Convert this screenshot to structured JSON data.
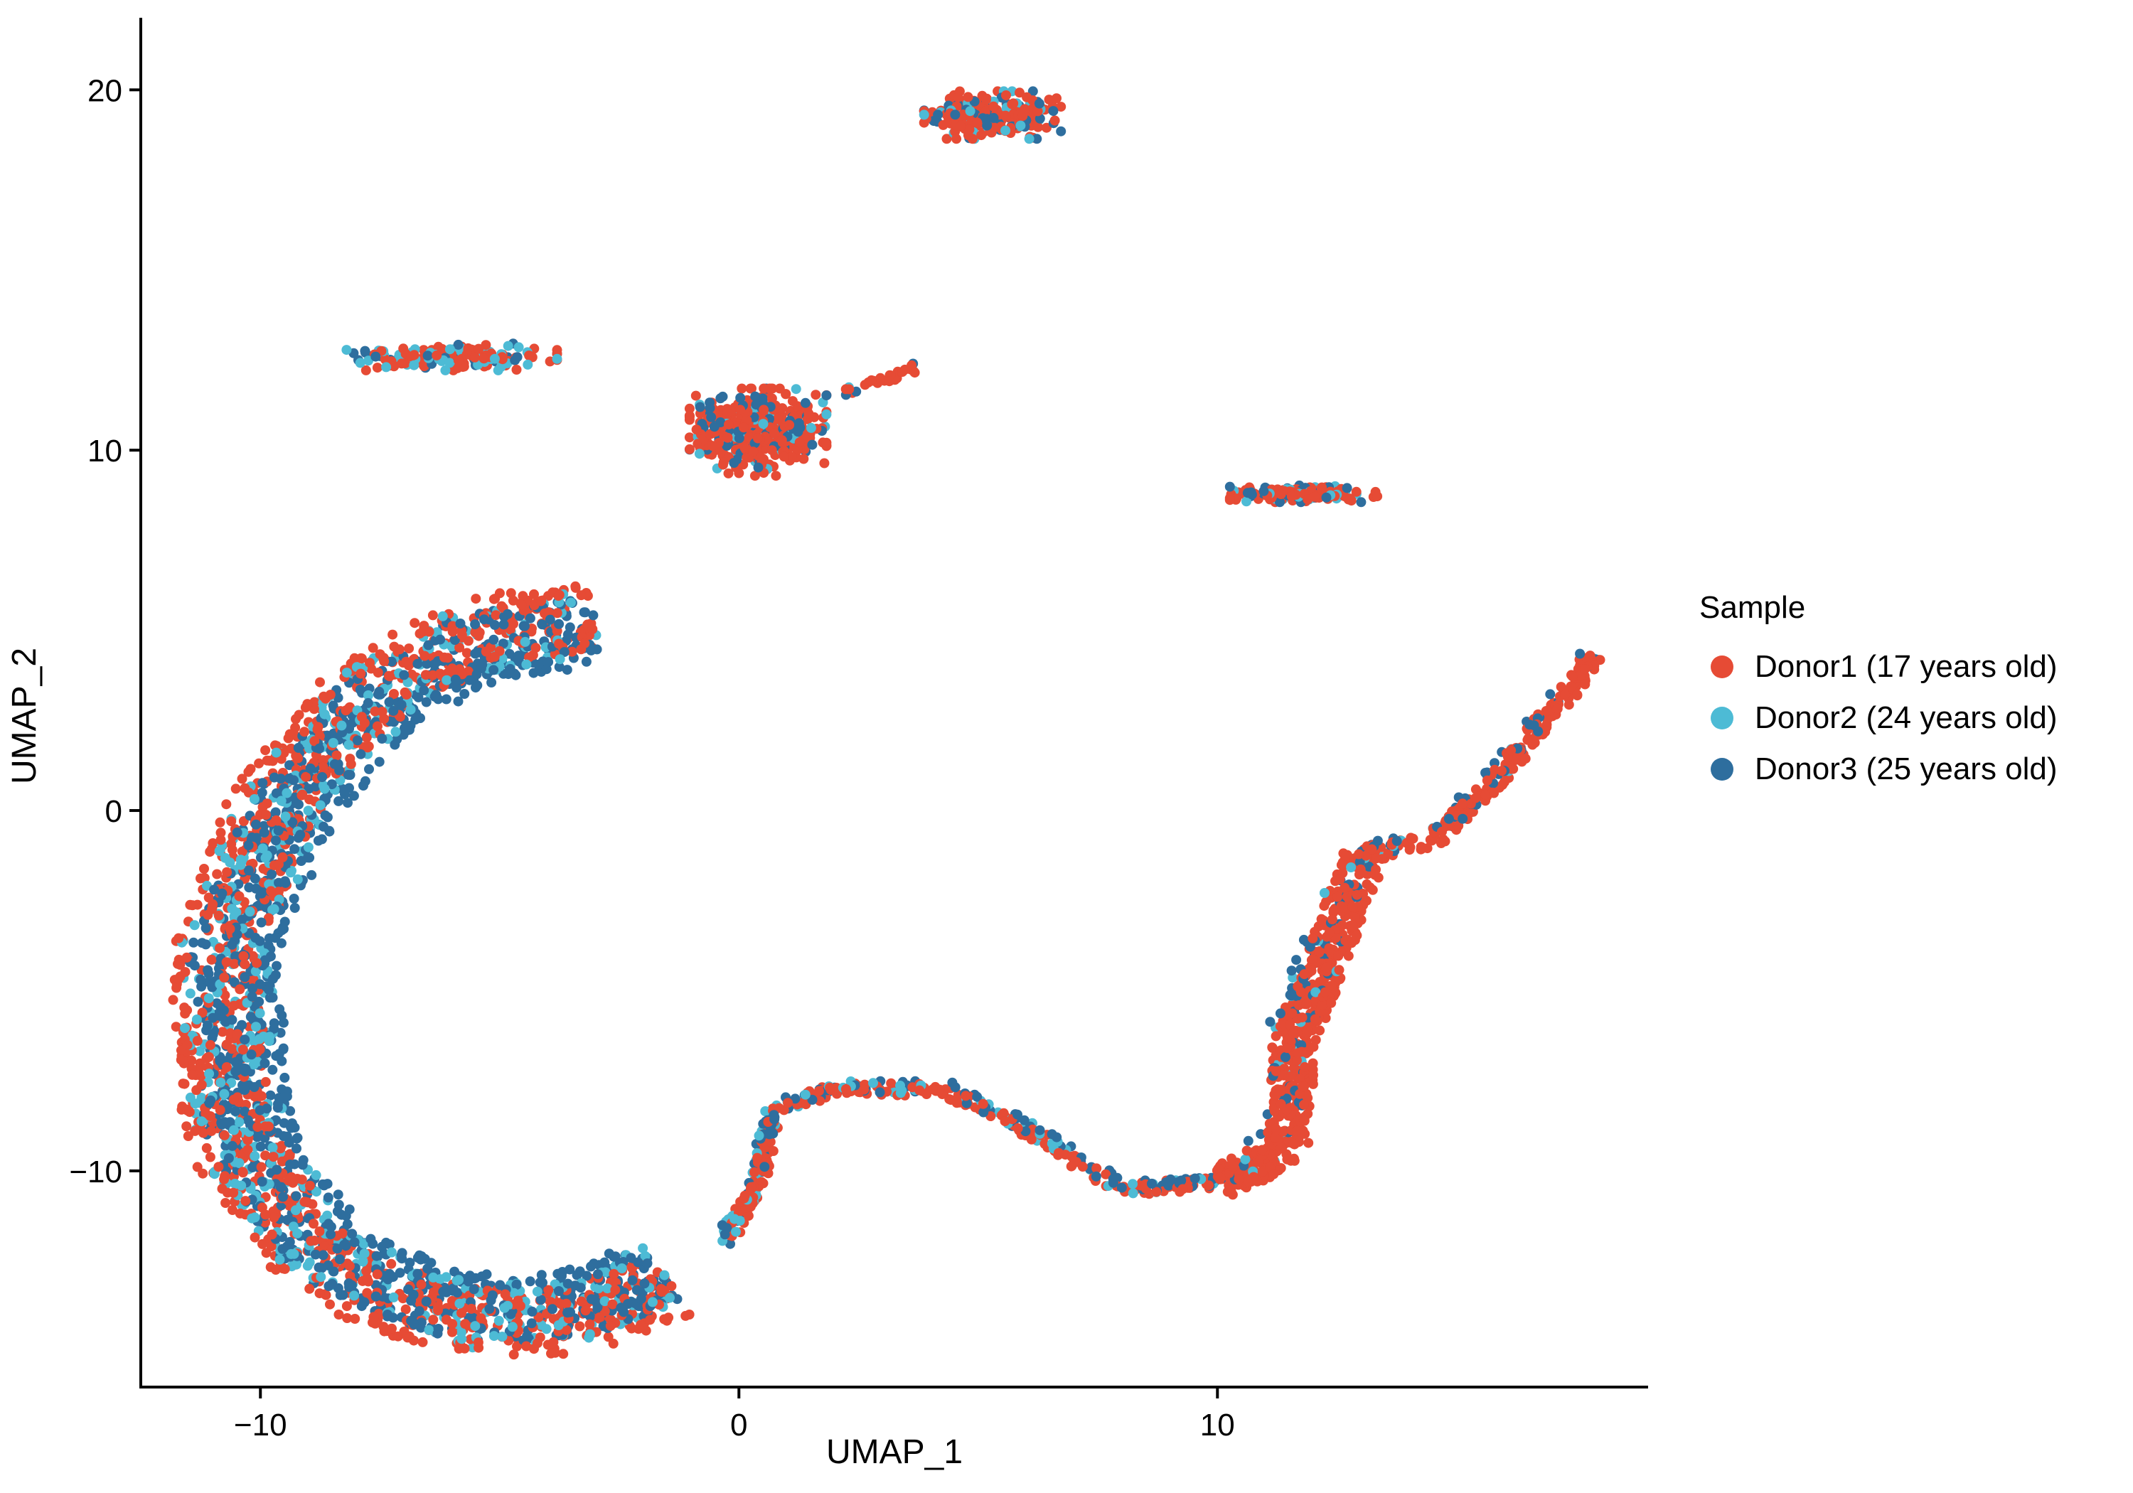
{
  "chart_data": {
    "type": "scatter",
    "title": "",
    "xlabel": "UMAP_1",
    "ylabel": "UMAP_2",
    "xlim": [
      -12.5,
      19
    ],
    "ylim": [
      -16,
      22
    ],
    "x_ticks": [
      -10,
      0,
      10
    ],
    "x_tick_labels": [
      "−10",
      "0",
      "10"
    ],
    "y_ticks": [
      -10,
      0,
      10,
      20
    ],
    "y_tick_labels": [
      "−10",
      "0",
      "10",
      "20"
    ],
    "grid": false,
    "legend": {
      "title": "Sample",
      "placement": "right",
      "entries": [
        {
          "label": "Donor1 (17 years old)",
          "color": "#E64B35"
        },
        {
          "label": "Donor2 (24 years old)",
          "color": "#4DBBD5"
        },
        {
          "label": "Donor3 (25 years old)",
          "color": "#2E6E9E"
        }
      ]
    },
    "series": [
      {
        "name": "Donor1 (17 years old)",
        "color": "#E64B35"
      },
      {
        "name": "Donor2 (24 years old)",
        "color": "#4DBBD5"
      },
      {
        "name": "Donor3 (25 years old)",
        "color": "#2E6E9E"
      }
    ],
    "clusters": [
      {
        "shape": "blob",
        "center": [
          5.3,
          19.3
        ],
        "spread": [
          1.3,
          0.6
        ],
        "mix": [
          0.62,
          0.16,
          0.22
        ],
        "n": 260
      },
      {
        "shape": "blob",
        "center": [
          -6.0,
          12.6
        ],
        "spread": [
          2.0,
          0.35
        ],
        "mix": [
          0.55,
          0.3,
          0.15
        ],
        "n": 170
      },
      {
        "shape": "blob",
        "center": [
          0.4,
          10.5
        ],
        "spread": [
          1.3,
          1.1
        ],
        "mix": [
          0.72,
          0.1,
          0.18
        ],
        "n": 440
      },
      {
        "shape": "blob",
        "center": [
          11.8,
          8.8
        ],
        "spread": [
          1.4,
          0.22
        ],
        "mix": [
          0.62,
          0.18,
          0.2
        ],
        "n": 190
      },
      {
        "shape": "path",
        "points": [
          [
            2.2,
            11.6
          ],
          [
            3.7,
            12.3
          ]
        ],
        "width": 0.12,
        "mix": [
          0.9,
          0.05,
          0.05
        ],
        "n": 28
      },
      {
        "shape": "path",
        "points": [
          [
            -3.0,
            5.2
          ],
          [
            -5.5,
            4.8
          ],
          [
            -7.8,
            3.0
          ],
          [
            -9.6,
            0.0
          ],
          [
            -10.8,
            -4.0
          ],
          [
            -10.5,
            -9.0
          ],
          [
            -8.7,
            -12.5
          ],
          [
            -6.0,
            -14.0
          ],
          [
            -3.5,
            -14.0
          ],
          [
            -1.5,
            -13.0
          ]
        ],
        "width": 0.95,
        "mix": [
          0.4,
          0.2,
          0.4
        ],
        "n": 2600
      },
      {
        "shape": "path",
        "points": [
          [
            -0.3,
            -12.0
          ],
          [
            0.4,
            -10.2
          ],
          [
            0.7,
            -8.3
          ],
          [
            2.0,
            -7.7
          ],
          [
            4.3,
            -7.7
          ],
          [
            6.0,
            -8.8
          ],
          [
            8.0,
            -10.5
          ],
          [
            10.0,
            -10.3
          ]
        ],
        "width": 0.18,
        "mix": [
          0.55,
          0.15,
          0.3
        ],
        "n": 420
      },
      {
        "shape": "path",
        "points": [
          [
            10.0,
            -10.3
          ],
          [
            11.4,
            -9.3
          ],
          [
            11.5,
            -6.5
          ],
          [
            12.5,
            -3.0
          ],
          [
            13.0,
            -1.2
          ]
        ],
        "width": 0.45,
        "mix": [
          0.85,
          0.03,
          0.12
        ],
        "n": 620
      },
      {
        "shape": "path",
        "points": [
          [
            13.0,
            -1.2
          ],
          [
            14.5,
            -0.8
          ],
          [
            16.0,
            1.2
          ],
          [
            17.4,
            3.5
          ],
          [
            17.8,
            4.3
          ]
        ],
        "width": 0.22,
        "mix": [
          0.8,
          0.05,
          0.15
        ],
        "n": 260
      }
    ]
  }
}
